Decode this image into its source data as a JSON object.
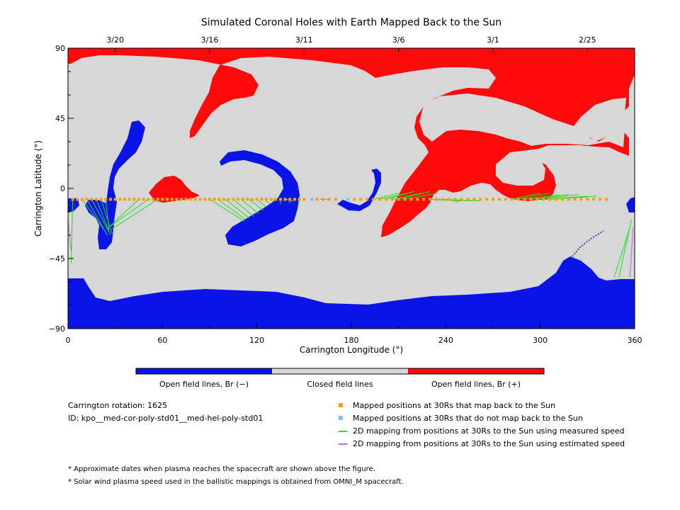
{
  "chart_data": {
    "type": "heatmap",
    "title": "Simulated Coronal Holes with Earth Mapped Back to the Sun",
    "xlabel": "Carrington Longitude (°)",
    "ylabel": "Carrington Latitude (°)",
    "xlim": [
      0,
      360
    ],
    "ylim": [
      -90,
      90
    ],
    "x_ticks": [
      "0",
      "60",
      "120",
      "180",
      "240",
      "300",
      "360"
    ],
    "y_ticks": [
      "90",
      "45",
      "0",
      "−45",
      "−90"
    ],
    "top_axis_dates": [
      {
        "label": "3/20",
        "lon": 30
      },
      {
        "label": "3/16",
        "lon": 90
      },
      {
        "label": "3/11",
        "lon": 150
      },
      {
        "label": "3/6",
        "lon": 210
      },
      {
        "label": "3/1",
        "lon": 270
      },
      {
        "label": "2/25",
        "lon": 330
      }
    ],
    "colorbar": [
      {
        "label": "Open field lines, Br (−)",
        "color": "#0a14e6"
      },
      {
        "label": "Closed field lines",
        "color": "#d7d7d7"
      },
      {
        "label": "Open field lines, Br (+)",
        "color": "#ff0a0a"
      }
    ],
    "mapped_latitude": -7,
    "mapped_longitudes": [
      3,
      6,
      9,
      12,
      15,
      18,
      21,
      24,
      27,
      30,
      33,
      36,
      39,
      42,
      45,
      48,
      51,
      54,
      57,
      60,
      63,
      66,
      69,
      72,
      75,
      78,
      81,
      84,
      87,
      90,
      93,
      96,
      99,
      102,
      105,
      108,
      111,
      114,
      117,
      120,
      123,
      126,
      129,
      132,
      135,
      138,
      141,
      144,
      147,
      150,
      158,
      162,
      166,
      170,
      182,
      186,
      190,
      194,
      198,
      202,
      206,
      210,
      214,
      218,
      222,
      226,
      230,
      234,
      238,
      242,
      246,
      250,
      254,
      258,
      262,
      266,
      270,
      274,
      278,
      282,
      286,
      290,
      294,
      298,
      302,
      306,
      310,
      314,
      318,
      322,
      326,
      330,
      334,
      338,
      342
    ],
    "unmapped_longitudes": [
      155,
      178
    ],
    "measured_speed_links": [
      [
        3,
        -7,
        2,
        -48
      ],
      [
        9,
        -7,
        24,
        -28
      ],
      [
        12,
        -7,
        25,
        -30
      ],
      [
        15,
        -7,
        26,
        -28
      ],
      [
        18,
        -7,
        27,
        -30
      ],
      [
        21,
        -7,
        28,
        -29
      ],
      [
        24,
        -7,
        26,
        -27
      ],
      [
        45,
        -7,
        27,
        -24
      ],
      [
        51,
        -7,
        26,
        -25
      ],
      [
        57,
        -7,
        28,
        -26
      ],
      [
        90,
        -7,
        112,
        -21
      ],
      [
        95,
        -7,
        113,
        -20
      ],
      [
        100,
        -7,
        115,
        -19
      ],
      [
        105,
        -7,
        118,
        -18
      ],
      [
        110,
        -7,
        121,
        -16
      ],
      [
        115,
        -7,
        124,
        -14
      ],
      [
        120,
        -7,
        126,
        -12
      ],
      [
        125,
        -7,
        128,
        -10
      ],
      [
        130,
        -7,
        131,
        -8
      ],
      [
        135,
        -7,
        135,
        -10
      ],
      [
        140,
        -7,
        137,
        -8
      ],
      [
        145,
        -7,
        140,
        -9
      ],
      [
        194,
        -7,
        210,
        -3
      ],
      [
        198,
        -7,
        216,
        -3
      ],
      [
        202,
        -7,
        220,
        -2
      ],
      [
        206,
        -7,
        225,
        -3
      ],
      [
        210,
        -7,
        230,
        -2
      ],
      [
        214,
        -7,
        235,
        -3
      ],
      [
        230,
        -7,
        250,
        -8
      ],
      [
        234,
        -7,
        256,
        -8
      ],
      [
        238,
        -7,
        262,
        -8
      ],
      [
        242,
        -7,
        248,
        -9
      ],
      [
        282,
        -7,
        300,
        -3
      ],
      [
        286,
        -7,
        306,
        -3
      ],
      [
        290,
        -7,
        312,
        -4
      ],
      [
        294,
        -7,
        318,
        -4
      ],
      [
        298,
        -7,
        324,
        -4
      ],
      [
        302,
        -7,
        330,
        -5
      ],
      [
        306,
        -7,
        336,
        -5
      ],
      [
        347,
        -57,
        357,
        -25
      ],
      [
        350,
        -57,
        358,
        -20
      ]
    ],
    "estimated_speed_links": [
      [
        160,
        -7,
        165,
        -7
      ],
      [
        357,
        -57,
        359,
        -25
      ],
      [
        0,
        -20,
        2,
        -40
      ]
    ]
  },
  "info": {
    "rotation": "Carrington rotation: 1625",
    "id": "ID: kpo__med-cor-poly-std01__med-hel-poly-std01"
  },
  "legend": [
    {
      "label": "Mapped positions at 30Rs that map back to the Sun",
      "color": "#f0a020",
      "kind": "square"
    },
    {
      "label": "Mapped positions at 30Rs that do not map back to the Sun",
      "color": "#7fbfff",
      "kind": "square"
    },
    {
      "label": "2D mapping from positions at 30Rs to the Sun using measured speed",
      "color": "#22dd22",
      "kind": "line"
    },
    {
      "label": "2D mapping from positions at 30Rs to the Sun using estimated speed",
      "color": "#b070e0",
      "kind": "line"
    }
  ],
  "notes": [
    "* Approximate dates when plasma reaches the spacecraft are shown above the figure.",
    "* Solar wind plasma speed used in the ballistic mappings is obtained from OMNI_M spacecraft."
  ]
}
